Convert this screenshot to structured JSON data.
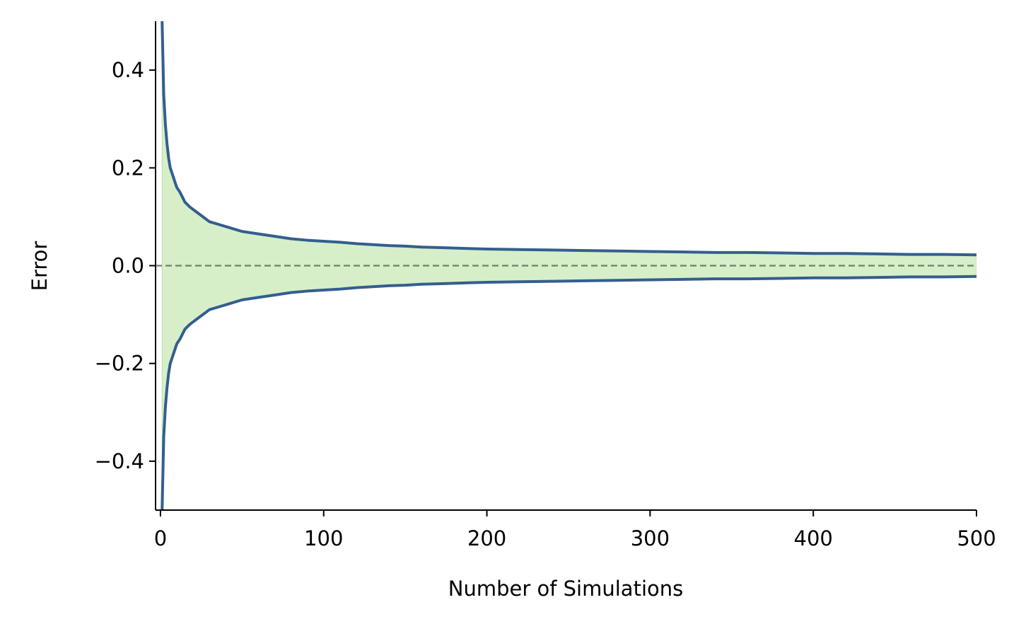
{
  "chart_data": {
    "type": "area",
    "title": "",
    "xlabel": "Number of Simulations",
    "ylabel": "Error",
    "xlim": [
      -3,
      500
    ],
    "ylim": [
      -0.5,
      0.5
    ],
    "xticks": [
      0,
      100,
      200,
      300,
      400,
      500
    ],
    "xtick_labels": [
      "0",
      "100",
      "200",
      "300",
      "400",
      "500"
    ],
    "yticks": [
      -0.4,
      -0.2,
      0.0,
      0.2,
      0.4
    ],
    "ytick_labels": [
      "−0.4",
      "−0.2",
      "0.0",
      "0.2",
      "0.4"
    ],
    "grid": false,
    "legend": "none",
    "reference_line": {
      "y": 0.0,
      "style": "dashed",
      "color": "#6f7f6f"
    },
    "colors": {
      "line": "#345e8e",
      "fill": "#d6efc9",
      "fill_edge": "#b9e0a8"
    },
    "series": [
      {
        "x": [
          1,
          2,
          3,
          4,
          5,
          6,
          8,
          10,
          12,
          15,
          18,
          22,
          26,
          30,
          35,
          40,
          45,
          50,
          60,
          70,
          80,
          90,
          100,
          110,
          120,
          130,
          140,
          150,
          160,
          170,
          180,
          190,
          200,
          220,
          240,
          260,
          280,
          300,
          320,
          340,
          360,
          380,
          400,
          420,
          440,
          460,
          480,
          500
        ],
        "upper": [
          0.5,
          0.35,
          0.29,
          0.25,
          0.22,
          0.2,
          0.18,
          0.16,
          0.15,
          0.13,
          0.12,
          0.11,
          0.1,
          0.09,
          0.085,
          0.08,
          0.075,
          0.07,
          0.065,
          0.06,
          0.055,
          0.052,
          0.05,
          0.048,
          0.045,
          0.043,
          0.041,
          0.04,
          0.038,
          0.037,
          0.036,
          0.035,
          0.034,
          0.033,
          0.032,
          0.031,
          0.03,
          0.029,
          0.028,
          0.027,
          0.027,
          0.026,
          0.025,
          0.025,
          0.024,
          0.023,
          0.023,
          0.022
        ],
        "lower": [
          -0.5,
          -0.35,
          -0.29,
          -0.25,
          -0.22,
          -0.2,
          -0.18,
          -0.16,
          -0.15,
          -0.13,
          -0.12,
          -0.11,
          -0.1,
          -0.09,
          -0.085,
          -0.08,
          -0.075,
          -0.07,
          -0.065,
          -0.06,
          -0.055,
          -0.052,
          -0.05,
          -0.048,
          -0.045,
          -0.043,
          -0.041,
          -0.04,
          -0.038,
          -0.037,
          -0.036,
          -0.035,
          -0.034,
          -0.033,
          -0.032,
          -0.031,
          -0.03,
          -0.029,
          -0.028,
          -0.027,
          -0.027,
          -0.026,
          -0.025,
          -0.025,
          -0.024,
          -0.023,
          -0.023,
          -0.022
        ]
      }
    ]
  }
}
